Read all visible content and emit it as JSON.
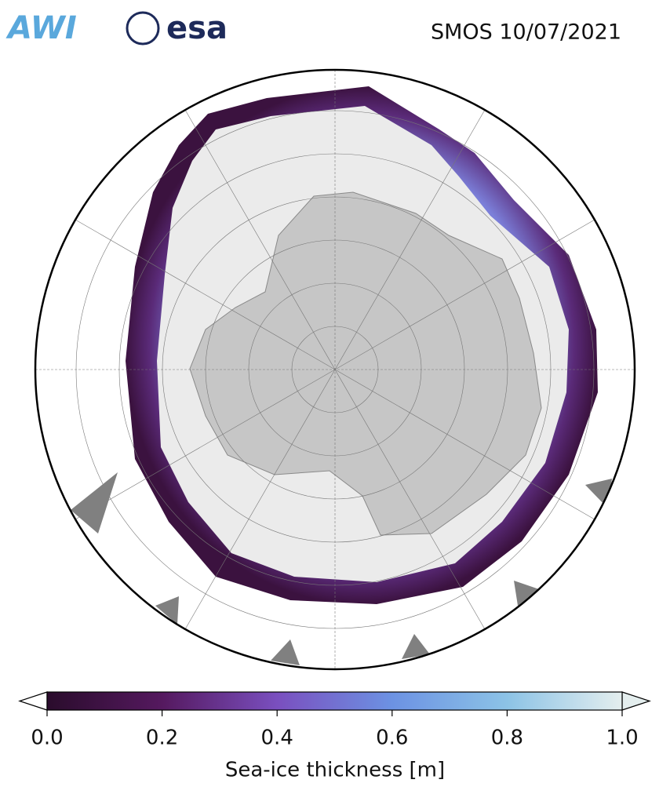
{
  "logos": [
    "AWI",
    "esa"
  ],
  "title": "SMOS 10/07/2021",
  "colorbar": {
    "label": "Sea-ice thickness [m]",
    "lim": [
      0,
      1
    ],
    "ticks": [
      {
        "value": 0,
        "label": "0.0"
      },
      0.2,
      0.4,
      0.6,
      0.8,
      {
        "value": 1,
        "label": "1.0"
      }
    ],
    "colors": [
      "#2a0c2c",
      "#55195f",
      "#7a4fbf",
      "#6c92e3",
      "#8cc3e6",
      "#e4eeee"
    ]
  }
}
